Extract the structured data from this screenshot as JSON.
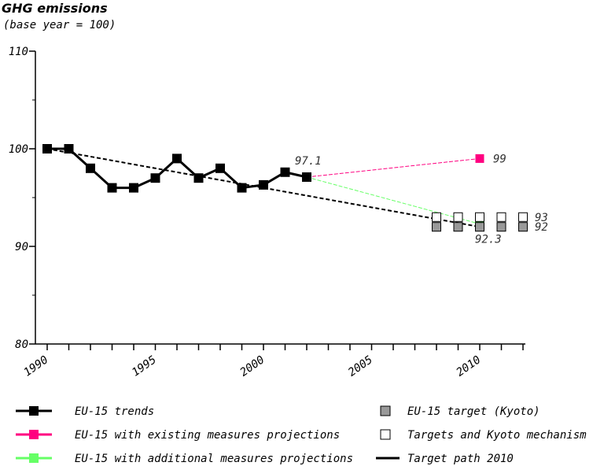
{
  "chart_data": {
    "type": "line",
    "title": "GHG emissions",
    "subtitle": "(base year = 100)",
    "xlabel": "",
    "ylabel": "",
    "xlim": [
      1990,
      2012
    ],
    "ylim": [
      80,
      110
    ],
    "x_ticks": [
      "1990",
      "1995",
      "2000",
      "2005",
      "2010"
    ],
    "y_ticks": [
      "80",
      "90",
      "100",
      "110"
    ],
    "grid": false,
    "legend_position": "bottom",
    "series": [
      {
        "name": "EU-15 trends",
        "style": "line-square",
        "color": "#000000",
        "x": [
          1990,
          1991,
          1992,
          1993,
          1994,
          1995,
          1996,
          1997,
          1998,
          1999,
          2000,
          2001,
          2002
        ],
        "y": [
          100,
          100,
          98,
          96,
          96,
          97,
          99,
          97,
          98,
          96,
          96.3,
          97.6,
          97.1
        ]
      },
      {
        "name": "EU-15 with existing measures projections",
        "style": "line-square",
        "color": "#ff0080",
        "x": [
          2002,
          2010
        ],
        "y": [
          97.1,
          99
        ]
      },
      {
        "name": "EU-15 with additional measures projections",
        "style": "line-square",
        "color": "#66ff66",
        "x": [
          2002,
          2010
        ],
        "y": [
          97.1,
          92.3
        ]
      },
      {
        "name": "EU-15 target (Kyoto)",
        "style": "square",
        "color": "#999999",
        "x": [
          2008,
          2009,
          2010,
          2011,
          2012
        ],
        "y": [
          92,
          92,
          92,
          92,
          92
        ]
      },
      {
        "name": "Targets and Kyoto mechanism",
        "style": "open-square",
        "color": "#000000",
        "x": [
          2008,
          2009,
          2010,
          2011,
          2012
        ],
        "y": [
          93,
          93,
          93,
          93,
          93
        ]
      },
      {
        "name": "Target path 2010",
        "style": "dashed",
        "color": "#000000",
        "x": [
          1990,
          2010
        ],
        "y": [
          100,
          92
        ]
      }
    ],
    "annotations": [
      {
        "text": "97.1",
        "x": 2002,
        "y": 97.1
      },
      {
        "text": "99",
        "x": 2010,
        "y": 99
      },
      {
        "text": "92.3",
        "x": 2010,
        "y": 92.3
      },
      {
        "text": "93",
        "x": 2012,
        "y": 93
      },
      {
        "text": "92",
        "x": 2012,
        "y": 92
      }
    ]
  }
}
